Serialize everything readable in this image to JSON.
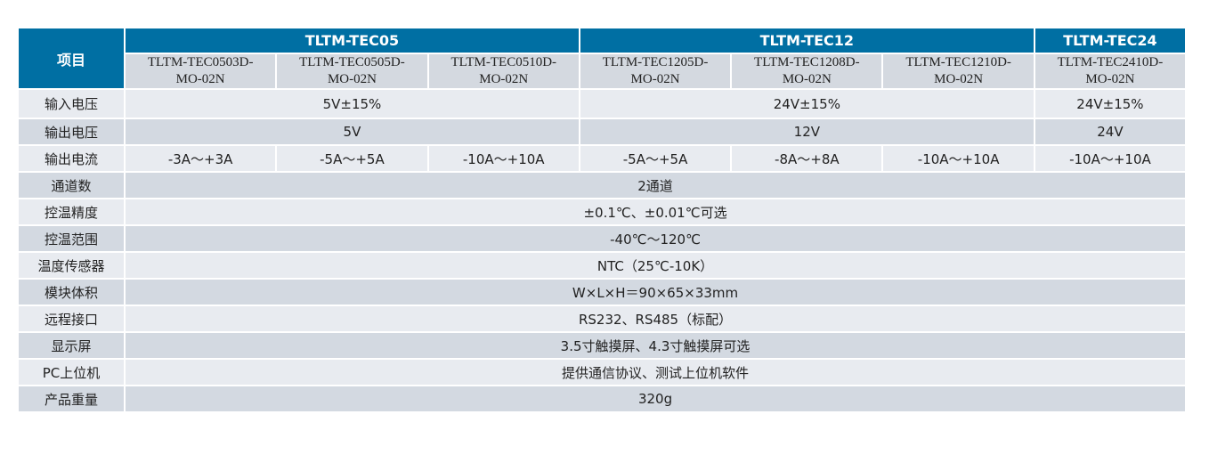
{
  "header": {
    "item_label": "项目",
    "groups": [
      "TLTM-TEC05",
      "TLTM-TEC12",
      "TLTM-TEC24"
    ],
    "models": [
      [
        "TLTM-TEC0503D-",
        "MO-02N"
      ],
      [
        "TLTM-TEC0505D-",
        "MO-02N"
      ],
      [
        "TLTM-TEC0510D-",
        "MO-02N"
      ],
      [
        "TLTM-TEC1205D-",
        "MO-02N"
      ],
      [
        "TLTM-TEC1208D-",
        "MO-02N"
      ],
      [
        "TLTM-TEC1210D-",
        "MO-02N"
      ],
      [
        "TLTM-TEC2410D-",
        "MO-02N"
      ]
    ]
  },
  "rows": {
    "input_voltage": {
      "label": "输入电压",
      "values": [
        "5V±15%",
        "24V±15%",
        "24V±15%"
      ]
    },
    "output_voltage": {
      "label": "输出电压",
      "values": [
        "5V",
        "12V",
        "24V"
      ]
    },
    "output_current": {
      "label": "输出电流",
      "values": [
        "-3A～+3A",
        "-5A～+5A",
        "-10A～+10A",
        "-5A～+5A",
        "-8A～+8A",
        "-10A～+10A",
        "-10A～+10A"
      ]
    },
    "channels": {
      "label": "通道数",
      "value": "2通道"
    },
    "precision": {
      "label": "控温精度",
      "value": "±0.1℃、±0.01℃可选"
    },
    "range": {
      "label": "控温范围",
      "value": "-40℃～120℃"
    },
    "sensor": {
      "label": "温度传感器",
      "value": "NTC（25℃-10K）"
    },
    "size": {
      "label": "模块体积",
      "value": "W×L×H＝90×65×33mm"
    },
    "remote": {
      "label": "远程接口",
      "value": "RS232、RS485（标配）"
    },
    "display": {
      "label": "显示屏",
      "value": "3.5寸触摸屏、4.3寸触摸屏可选"
    },
    "pc": {
      "label": "PC上位机",
      "value": "提供通信协议、测试上位机软件"
    },
    "weight": {
      "label": "产品重量",
      "value": "320g"
    }
  },
  "colors": {
    "header": "#006fa3",
    "row_light": "#e8ebf0",
    "row_dark": "#d3d9e1"
  }
}
